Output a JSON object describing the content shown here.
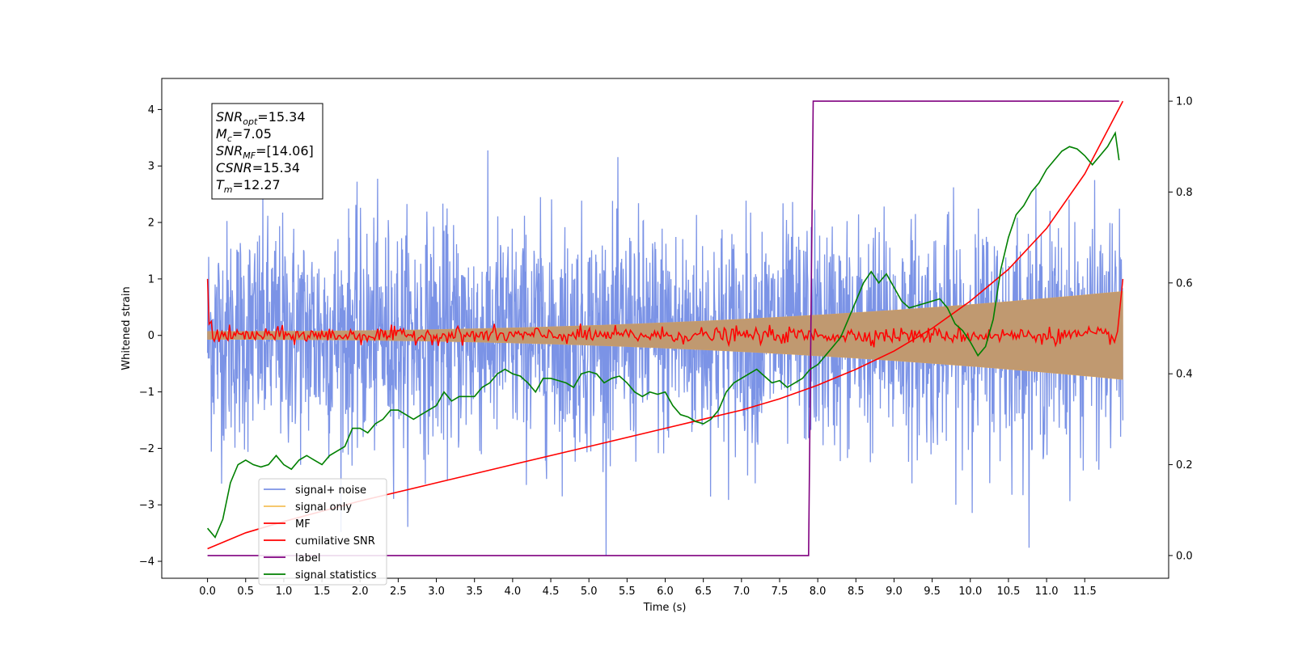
{
  "chart_data": {
    "type": "line",
    "xlabel": "Time (s)",
    "ylabel": "Whitened strain",
    "xlim": [
      -0.6,
      12.6
    ],
    "ylim": [
      -4.3,
      4.55
    ],
    "y2lim": [
      -0.05,
      1.05
    ],
    "x_ticks": [
      "0.0",
      "0.5",
      "1.0",
      "1.5",
      "2.0",
      "2.5",
      "3.0",
      "3.5",
      "4.0",
      "4.5",
      "5.0",
      "5.5",
      "6.0",
      "6.5",
      "7.0",
      "7.5",
      "8.0",
      "8.5",
      "9.0",
      "9.5",
      "10.0",
      "10.5",
      "11.0",
      "11.5"
    ],
    "y_ticks": [
      "4",
      "3",
      "2",
      "1",
      "0",
      "−1",
      "−2",
      "−3",
      "−4"
    ],
    "y2_ticks": [
      "1.0",
      "0.8",
      "0.6",
      "0.4",
      "0.2",
      "0.0"
    ],
    "grid": false,
    "legend_position": "lower-left",
    "info_box": [
      {
        "sym": "SNR",
        "sub": "opt",
        "val": "=15.34"
      },
      {
        "sym": "M",
        "sub": "c",
        "val": "=7.05"
      },
      {
        "sym": "SNR",
        "sub": "MF",
        "val": "=[14.06]"
      },
      {
        "sym": "CSNR",
        "sub": "",
        "val": "=15.34"
      },
      {
        "sym": "T",
        "sub": "m",
        "val": "=12.27"
      }
    ],
    "series": [
      {
        "name": "signal+ noise",
        "color": "#7b93e6",
        "axis": "left",
        "kind": "noise",
        "duration": 12.0,
        "std": 1.0,
        "min": -3.9,
        "max": 4.15
      },
      {
        "name": "signal only",
        "color": "#c09970",
        "axis": "left",
        "kind": "chirp-envelope",
        "duration": 12.0,
        "start_amp": 0.07,
        "end_amp": 0.78
      },
      {
        "name": "MF",
        "color": "#ff0000",
        "axis": "left",
        "kind": "matched-filter",
        "duration": 12.0,
        "start_value": 1.0,
        "end_value": 1.0,
        "noise_std": 0.07
      },
      {
        "name": "cumilative SNR",
        "color": "#ff0000",
        "axis": "right",
        "x": [
          0.0,
          0.5,
          1.0,
          2.0,
          3.0,
          4.0,
          5.0,
          6.0,
          7.0,
          7.5,
          8.0,
          8.5,
          9.0,
          9.5,
          10.0,
          10.5,
          11.0,
          11.5,
          12.0
        ],
        "values": [
          0.015,
          0.05,
          0.075,
          0.12,
          0.16,
          0.2,
          0.24,
          0.28,
          0.32,
          0.345,
          0.375,
          0.41,
          0.45,
          0.5,
          0.56,
          0.63,
          0.72,
          0.84,
          1.0
        ]
      },
      {
        "name": "label",
        "color": "#800080",
        "axis": "right",
        "x": [
          0.0,
          7.88,
          7.94,
          11.95
        ],
        "values": [
          0.0,
          0.0,
          1.0,
          1.0
        ]
      },
      {
        "name": "signal statistics",
        "color": "#008000",
        "axis": "right",
        "x": [
          0.0,
          0.1,
          0.2,
          0.3,
          0.4,
          0.5,
          0.6,
          0.7,
          0.8,
          0.9,
          1.0,
          1.1,
          1.2,
          1.3,
          1.4,
          1.5,
          1.6,
          1.7,
          1.8,
          1.9,
          2.0,
          2.1,
          2.2,
          2.3,
          2.4,
          2.5,
          2.6,
          2.7,
          2.8,
          2.9,
          3.0,
          3.1,
          3.2,
          3.3,
          3.4,
          3.5,
          3.6,
          3.7,
          3.8,
          3.9,
          4.0,
          4.1,
          4.2,
          4.3,
          4.4,
          4.5,
          4.6,
          4.7,
          4.8,
          4.9,
          5.0,
          5.1,
          5.2,
          5.3,
          5.4,
          5.5,
          5.6,
          5.7,
          5.8,
          5.9,
          6.0,
          6.1,
          6.2,
          6.3,
          6.4,
          6.5,
          6.6,
          6.7,
          6.8,
          6.9,
          7.0,
          7.1,
          7.2,
          7.3,
          7.4,
          7.5,
          7.6,
          7.7,
          7.8,
          7.9,
          8.0,
          8.1,
          8.2,
          8.3,
          8.4,
          8.5,
          8.6,
          8.7,
          8.8,
          8.9,
          9.0,
          9.1,
          9.2,
          9.3,
          9.4,
          9.5,
          9.6,
          9.7,
          9.8,
          9.9,
          10.0,
          10.1,
          10.2,
          10.3,
          10.4,
          10.5,
          10.6,
          10.7,
          10.8,
          10.9,
          11.0,
          11.1,
          11.2,
          11.3,
          11.4,
          11.5,
          11.6,
          11.7,
          11.8,
          11.9,
          11.95
        ],
        "values": [
          0.06,
          0.04,
          0.08,
          0.16,
          0.2,
          0.21,
          0.2,
          0.195,
          0.2,
          0.22,
          0.2,
          0.19,
          0.21,
          0.22,
          0.21,
          0.2,
          0.22,
          0.23,
          0.24,
          0.28,
          0.28,
          0.27,
          0.29,
          0.3,
          0.32,
          0.32,
          0.31,
          0.3,
          0.31,
          0.32,
          0.33,
          0.36,
          0.34,
          0.35,
          0.35,
          0.35,
          0.37,
          0.38,
          0.4,
          0.41,
          0.4,
          0.395,
          0.38,
          0.36,
          0.39,
          0.39,
          0.385,
          0.38,
          0.37,
          0.4,
          0.405,
          0.4,
          0.38,
          0.39,
          0.395,
          0.38,
          0.36,
          0.35,
          0.36,
          0.355,
          0.36,
          0.33,
          0.31,
          0.305,
          0.295,
          0.29,
          0.3,
          0.32,
          0.36,
          0.38,
          0.39,
          0.4,
          0.41,
          0.395,
          0.38,
          0.385,
          0.37,
          0.38,
          0.39,
          0.41,
          0.42,
          0.44,
          0.46,
          0.48,
          0.52,
          0.56,
          0.6,
          0.625,
          0.6,
          0.62,
          0.59,
          0.56,
          0.545,
          0.55,
          0.555,
          0.56,
          0.565,
          0.545,
          0.51,
          0.495,
          0.47,
          0.44,
          0.46,
          0.52,
          0.63,
          0.7,
          0.75,
          0.77,
          0.8,
          0.82,
          0.85,
          0.87,
          0.89,
          0.9,
          0.895,
          0.88,
          0.86,
          0.88,
          0.9,
          0.93,
          0.87
        ]
      }
    ]
  }
}
